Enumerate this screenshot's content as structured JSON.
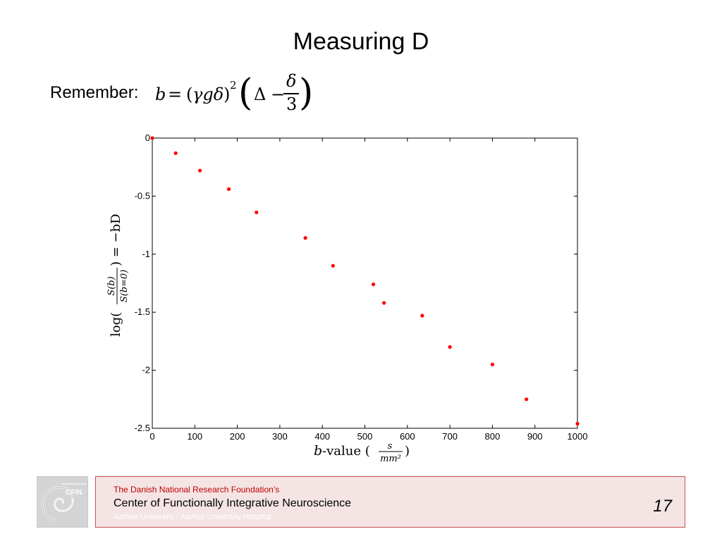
{
  "slide": {
    "title": "Measuring D",
    "remember_label": "Remember:",
    "formula": {
      "lhs": "b",
      "equals": "=",
      "open_paren": "(",
      "inner": "γgδ",
      "close_paren": ")",
      "power": "2",
      "big_open": "(",
      "delta": "Δ",
      "minus": "−",
      "frac_num": "δ",
      "frac_den": "3",
      "big_close": ")"
    }
  },
  "chart_data": {
    "type": "scatter",
    "x": [
      0,
      55,
      112,
      180,
      245,
      360,
      425,
      520,
      545,
      635,
      700,
      800,
      880,
      1000
    ],
    "y": [
      0,
      -0.13,
      -0.28,
      -0.44,
      -0.64,
      -0.86,
      -1.1,
      -1.26,
      -1.42,
      -1.53,
      -1.8,
      -1.95,
      -2.25,
      -2.46
    ],
    "xlim": [
      0,
      1000
    ],
    "ylim": [
      -2.5,
      0
    ],
    "xticks": [
      0,
      100,
      200,
      300,
      400,
      500,
      600,
      700,
      800,
      900,
      1000
    ],
    "yticks": [
      0,
      -0.5,
      -1,
      -1.5,
      -2,
      -2.5
    ],
    "xtick_labels": [
      "0",
      "100",
      "200",
      "300",
      "400",
      "500",
      "600",
      "700",
      "800",
      "900",
      "1000"
    ],
    "ytick_labels": [
      "0",
      "-0.5",
      "-1",
      "-1.5",
      "-2",
      "-2.5"
    ],
    "xlabel": {
      "var": "b",
      "text": "-value (",
      "frac_num": "s",
      "frac_den": "mm²",
      "close": ")"
    },
    "ylabel": {
      "prefix": "log(",
      "frac_num": "S(b)",
      "frac_den": "S(b=0)",
      "suffix": ") = −bD"
    },
    "marker_color": "#ff0000",
    "grid": false
  },
  "footer": {
    "logo_text": "CFIN",
    "foundation": "The Danish National Research Foundation’s",
    "center": "Center of Functionally Integrative Neuroscience",
    "university": "Aarhus University / Aarhus University Hospital",
    "page_number": "17",
    "accent_color": "#c00000"
  }
}
